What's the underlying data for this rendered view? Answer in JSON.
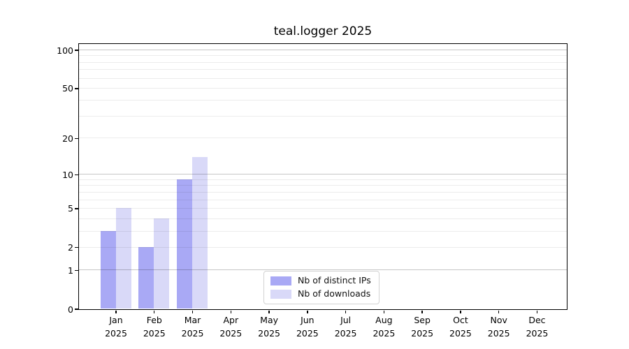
{
  "chart_data": {
    "type": "bar",
    "title": "teal.logger 2025",
    "categories": [
      "Jan 2025",
      "Feb 2025",
      "Mar 2025",
      "Apr 2025",
      "May 2025",
      "Jun 2025",
      "Jul 2025",
      "Aug 2025",
      "Sep 2025",
      "Oct 2025",
      "Nov 2025",
      "Dec 2025"
    ],
    "series": [
      {
        "name": "Nb of distinct IPs",
        "color": "#a9a9f5",
        "values": [
          3,
          2,
          9,
          0,
          0,
          0,
          0,
          0,
          0,
          0,
          0,
          0
        ]
      },
      {
        "name": "Nb of downloads",
        "color": "#d9d9f8",
        "values": [
          5,
          4,
          14,
          0,
          0,
          0,
          0,
          0,
          0,
          0,
          0,
          0
        ]
      }
    ],
    "y_axis": {
      "scale": "log10(value+1)",
      "ylim": [
        0,
        112
      ],
      "tick_values": [
        0,
        1,
        2,
        5,
        10,
        20,
        50,
        100
      ],
      "major_gridlines": [
        1,
        10,
        100
      ],
      "minor_gridlines": [
        2,
        3,
        4,
        5,
        6,
        7,
        8,
        9,
        20,
        30,
        40,
        50,
        60,
        70,
        80,
        90
      ]
    },
    "legend": {
      "position": "lower center"
    },
    "grid": true,
    "colors": {
      "axis": "#000000",
      "text": "#000000",
      "major_grid": "rgba(0,0,0,0.22)",
      "minor_grid": "rgba(0,0,0,0.075)",
      "background": "#ffffff"
    }
  }
}
